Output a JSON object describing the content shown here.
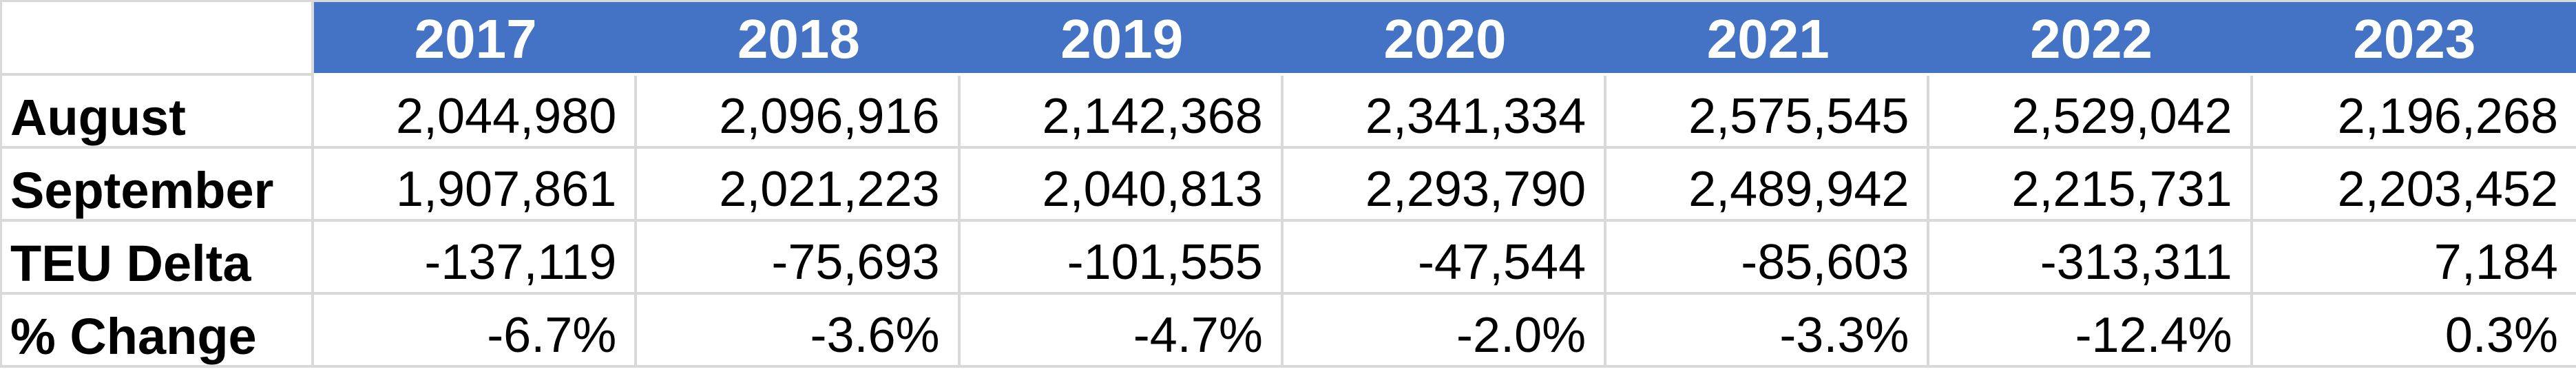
{
  "table": {
    "corner": "",
    "years": [
      "2017",
      "2018",
      "2019",
      "2020",
      "2021",
      "2022",
      "2023"
    ],
    "rows": [
      {
        "label": "August",
        "values": [
          "2,044,980",
          "2,096,916",
          "2,142,368",
          "2,341,334",
          "2,575,545",
          "2,529,042",
          "2,196,268"
        ]
      },
      {
        "label": "September",
        "values": [
          "1,907,861",
          "2,021,223",
          "2,040,813",
          "2,293,790",
          "2,489,942",
          "2,215,731",
          "2,203,452"
        ]
      },
      {
        "label": "TEU Delta",
        "values": [
          "-137,119",
          "-75,693",
          "-101,555",
          "-47,544",
          "-85,603",
          "-313,311",
          "7,184"
        ]
      },
      {
        "label": "% Change",
        "values": [
          "-6.7%",
          "-3.6%",
          "-4.7%",
          "-2.0%",
          "-3.3%",
          "-12.4%",
          "0.3%"
        ]
      }
    ]
  },
  "colors": {
    "header_bg": "#4472C4",
    "header_text": "#FFFFFF",
    "grid_line": "#D9D9D9",
    "cell_bg": "#FFFFFF",
    "text": "#000000"
  },
  "chart_data": {
    "type": "table",
    "categories": [
      "2017",
      "2018",
      "2019",
      "2020",
      "2021",
      "2022",
      "2023"
    ],
    "series": [
      {
        "name": "August",
        "values": [
          2044980,
          2096916,
          2142368,
          2341334,
          2575545,
          2529042,
          2196268
        ]
      },
      {
        "name": "September",
        "values": [
          1907861,
          2021223,
          2040813,
          2293790,
          2489942,
          2215731,
          2203452
        ]
      },
      {
        "name": "TEU Delta",
        "values": [
          -137119,
          -75693,
          -101555,
          -47544,
          -85603,
          -313311,
          7184
        ]
      },
      {
        "name": "% Change",
        "values": [
          -6.7,
          -3.6,
          -4.7,
          -2.0,
          -3.3,
          -12.4,
          0.3
        ],
        "unit": "%"
      }
    ],
    "title": "August vs September TEU volumes by year"
  }
}
